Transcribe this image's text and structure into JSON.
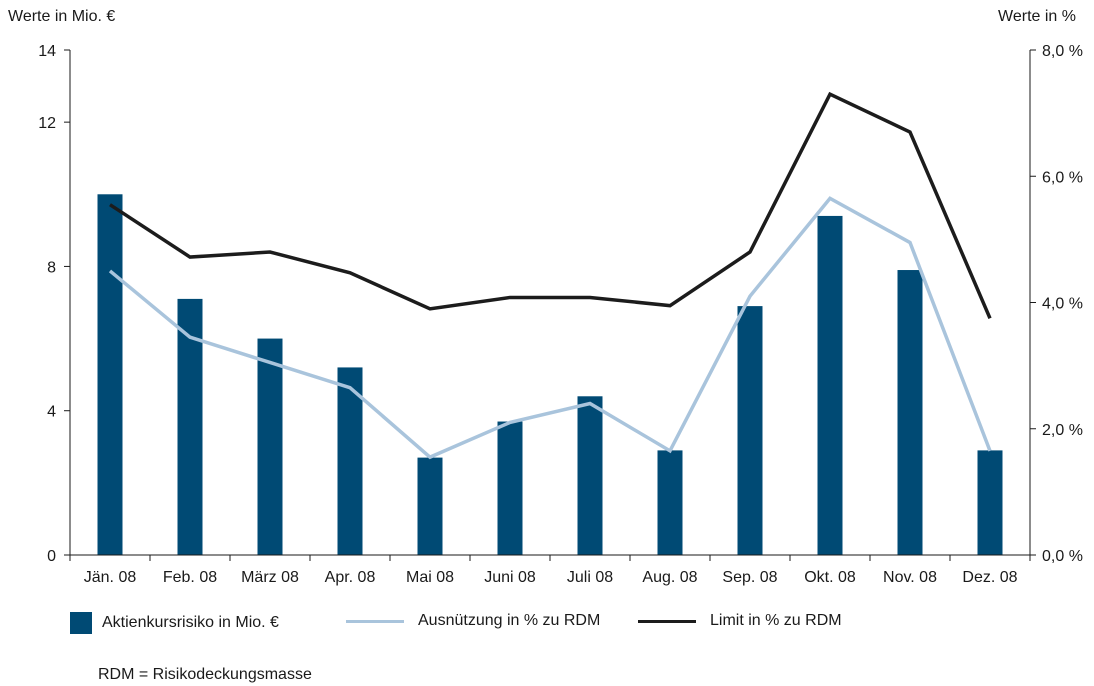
{
  "chart_data": {
    "type": "bar",
    "categories": [
      "Jän. 08",
      "Feb. 08",
      "März 08",
      "Apr. 08",
      "Mai 08",
      "Juni 08",
      "Juli 08",
      "Aug. 08",
      "Sep. 08",
      "Okt. 08",
      "Nov. 08",
      "Dez. 08"
    ],
    "y_left": {
      "label": "Werte in Mio. €",
      "ticks": [
        "0",
        "4",
        "8",
        "12",
        "14"
      ],
      "tick_values": [
        0,
        4,
        8,
        12,
        14
      ],
      "lim": [
        0,
        14
      ]
    },
    "y_right": {
      "label": "Werte in %",
      "ticks": [
        "0,0 %",
        "2,0 %",
        "4,0 %",
        "6,0 %",
        "8,0 %"
      ],
      "tick_values": [
        0,
        2,
        4,
        6,
        8
      ],
      "lim": [
        0,
        8
      ]
    },
    "series": [
      {
        "name": "Aktienkursrisiko in Mio. €",
        "type": "bar",
        "axis": "left",
        "color": "#004a74",
        "values": [
          10.0,
          7.1,
          6.0,
          5.2,
          2.7,
          3.7,
          4.4,
          2.9,
          6.9,
          9.4,
          7.9,
          2.9
        ]
      },
      {
        "name": "Ausnützung in % zu RDM",
        "type": "line",
        "axis": "right",
        "color": "#a9c4dc",
        "values": [
          4.5,
          3.45,
          3.05,
          2.65,
          1.55,
          2.1,
          2.4,
          1.65,
          4.1,
          5.65,
          4.95,
          1.65
        ]
      },
      {
        "name": "Limit in % zu RDM",
        "type": "line",
        "axis": "right",
        "color": "#1c1c1c",
        "values": [
          5.55,
          4.72,
          4.8,
          4.47,
          3.9,
          4.08,
          4.08,
          3.95,
          4.8,
          7.3,
          6.7,
          3.75
        ]
      }
    ],
    "legend_position": "bottom",
    "grid": false
  },
  "footnote": "RDM = Risikodeckungsmasse"
}
